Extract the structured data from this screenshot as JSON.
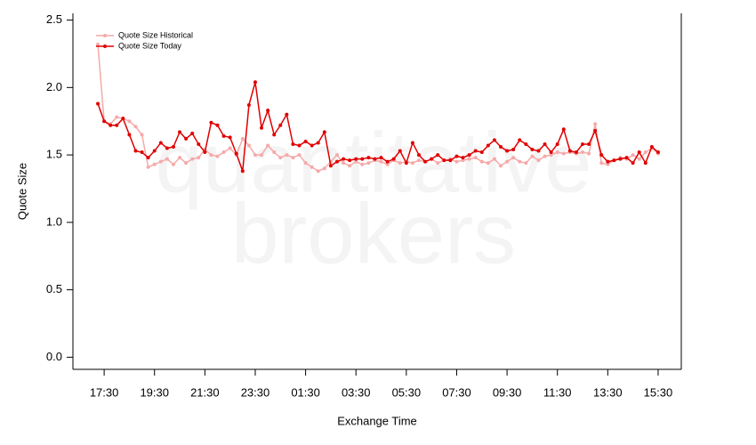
{
  "chart_data": {
    "type": "line",
    "xlabel": "Exchange Time",
    "ylabel": "Quote Size",
    "watermark": [
      "quantitative",
      "brokers"
    ],
    "x": [
      17.25,
      17.5,
      17.75,
      18,
      18.25,
      18.5,
      18.75,
      19,
      19.25,
      19.5,
      19.75,
      20,
      20.25,
      20.5,
      20.75,
      21,
      21.25,
      21.5,
      21.75,
      22,
      22.25,
      22.5,
      22.75,
      23,
      23.25,
      23.5,
      23.75,
      24,
      24.25,
      24.5,
      24.75,
      25,
      25.25,
      25.5,
      25.75,
      26,
      26.25,
      26.5,
      26.75,
      27,
      27.25,
      27.5,
      27.75,
      28,
      28.25,
      28.5,
      28.75,
      29,
      29.25,
      29.5,
      29.75,
      30,
      30.25,
      30.5,
      30.75,
      31,
      31.25,
      31.5,
      31.75,
      32,
      32.25,
      32.5,
      32.75,
      33,
      33.25,
      33.5,
      33.75,
      34,
      34.25,
      34.5,
      34.75,
      35,
      35.25,
      35.5,
      35.75,
      36,
      36.25,
      36.5,
      36.75,
      37,
      37.25,
      37.5,
      37.75,
      38,
      38.25,
      38.5,
      38.75,
      39,
      39.25,
      39.5
    ],
    "series": [
      {
        "name": "Quote Size Historical",
        "color": "#f5a9a9",
        "values": [
          2.32,
          1.75,
          1.73,
          1.78,
          1.77,
          1.75,
          1.71,
          1.65,
          1.41,
          1.43,
          1.45,
          1.47,
          1.43,
          1.48,
          1.44,
          1.47,
          1.48,
          1.54,
          1.5,
          1.49,
          1.52,
          1.55,
          1.5,
          1.62,
          1.57,
          1.5,
          1.5,
          1.57,
          1.52,
          1.48,
          1.5,
          1.48,
          1.5,
          1.44,
          1.41,
          1.38,
          1.4,
          1.45,
          1.5,
          1.44,
          1.42,
          1.45,
          1.43,
          1.44,
          1.46,
          1.45,
          1.43,
          1.46,
          1.44,
          1.45,
          1.44,
          1.46,
          1.45,
          1.47,
          1.44,
          1.46,
          1.47,
          1.45,
          1.46,
          1.47,
          1.48,
          1.45,
          1.44,
          1.47,
          1.42,
          1.45,
          1.48,
          1.45,
          1.44,
          1.49,
          1.46,
          1.49,
          1.5,
          1.52,
          1.51,
          1.52,
          1.51,
          1.52,
          1.51,
          1.73,
          1.44,
          1.43,
          1.46,
          1.48,
          1.47,
          1.5,
          1.47,
          1.52,
          1.55,
          1.51
        ]
      },
      {
        "name": "Quote Size Today",
        "color": "#e00000",
        "values": [
          1.88,
          1.75,
          1.72,
          1.72,
          1.77,
          1.65,
          1.53,
          1.52,
          1.48,
          1.53,
          1.59,
          1.55,
          1.56,
          1.67,
          1.62,
          1.66,
          1.58,
          1.52,
          1.74,
          1.72,
          1.64,
          1.63,
          1.51,
          1.38,
          1.87,
          2.04,
          1.7,
          1.83,
          1.65,
          1.72,
          1.8,
          1.58,
          1.57,
          1.6,
          1.57,
          1.59,
          1.67,
          1.42,
          1.45,
          1.47,
          1.46,
          1.47,
          1.47,
          1.48,
          1.47,
          1.48,
          1.45,
          1.47,
          1.53,
          1.44,
          1.59,
          1.5,
          1.45,
          1.47,
          1.5,
          1.46,
          1.46,
          1.49,
          1.48,
          1.5,
          1.53,
          1.52,
          1.57,
          1.61,
          1.56,
          1.53,
          1.54,
          1.61,
          1.58,
          1.54,
          1.53,
          1.58,
          1.52,
          1.58,
          1.69,
          1.53,
          1.52,
          1.58,
          1.58,
          1.68,
          1.5,
          1.45,
          1.46,
          1.47,
          1.48,
          1.44,
          1.52,
          1.44,
          1.56,
          1.52
        ]
      }
    ],
    "xlim": [
      16.26,
      40.42
    ],
    "xticks": [
      {
        "value": 17.5,
        "label": "17:30"
      },
      {
        "value": 19.5,
        "label": "19:30"
      },
      {
        "value": 21.5,
        "label": "21:30"
      },
      {
        "value": 23.5,
        "label": "23:30"
      },
      {
        "value": 25.5,
        "label": "01:30"
      },
      {
        "value": 27.5,
        "label": "03:30"
      },
      {
        "value": 29.5,
        "label": "05:30"
      },
      {
        "value": 31.5,
        "label": "07:30"
      },
      {
        "value": 33.5,
        "label": "09:30"
      },
      {
        "value": 35.5,
        "label": "11:30"
      },
      {
        "value": 37.5,
        "label": "13:30"
      },
      {
        "value": 39.5,
        "label": "15:30"
      }
    ],
    "ylim": [
      -0.09,
      2.55
    ],
    "yticks": [
      {
        "value": 0,
        "label": "0.0"
      },
      0.5,
      {
        "value": 1,
        "label": "1.0"
      },
      1.5,
      {
        "value": 2,
        "label": "2.0"
      },
      2.5
    ],
    "legend": "top-left"
  }
}
